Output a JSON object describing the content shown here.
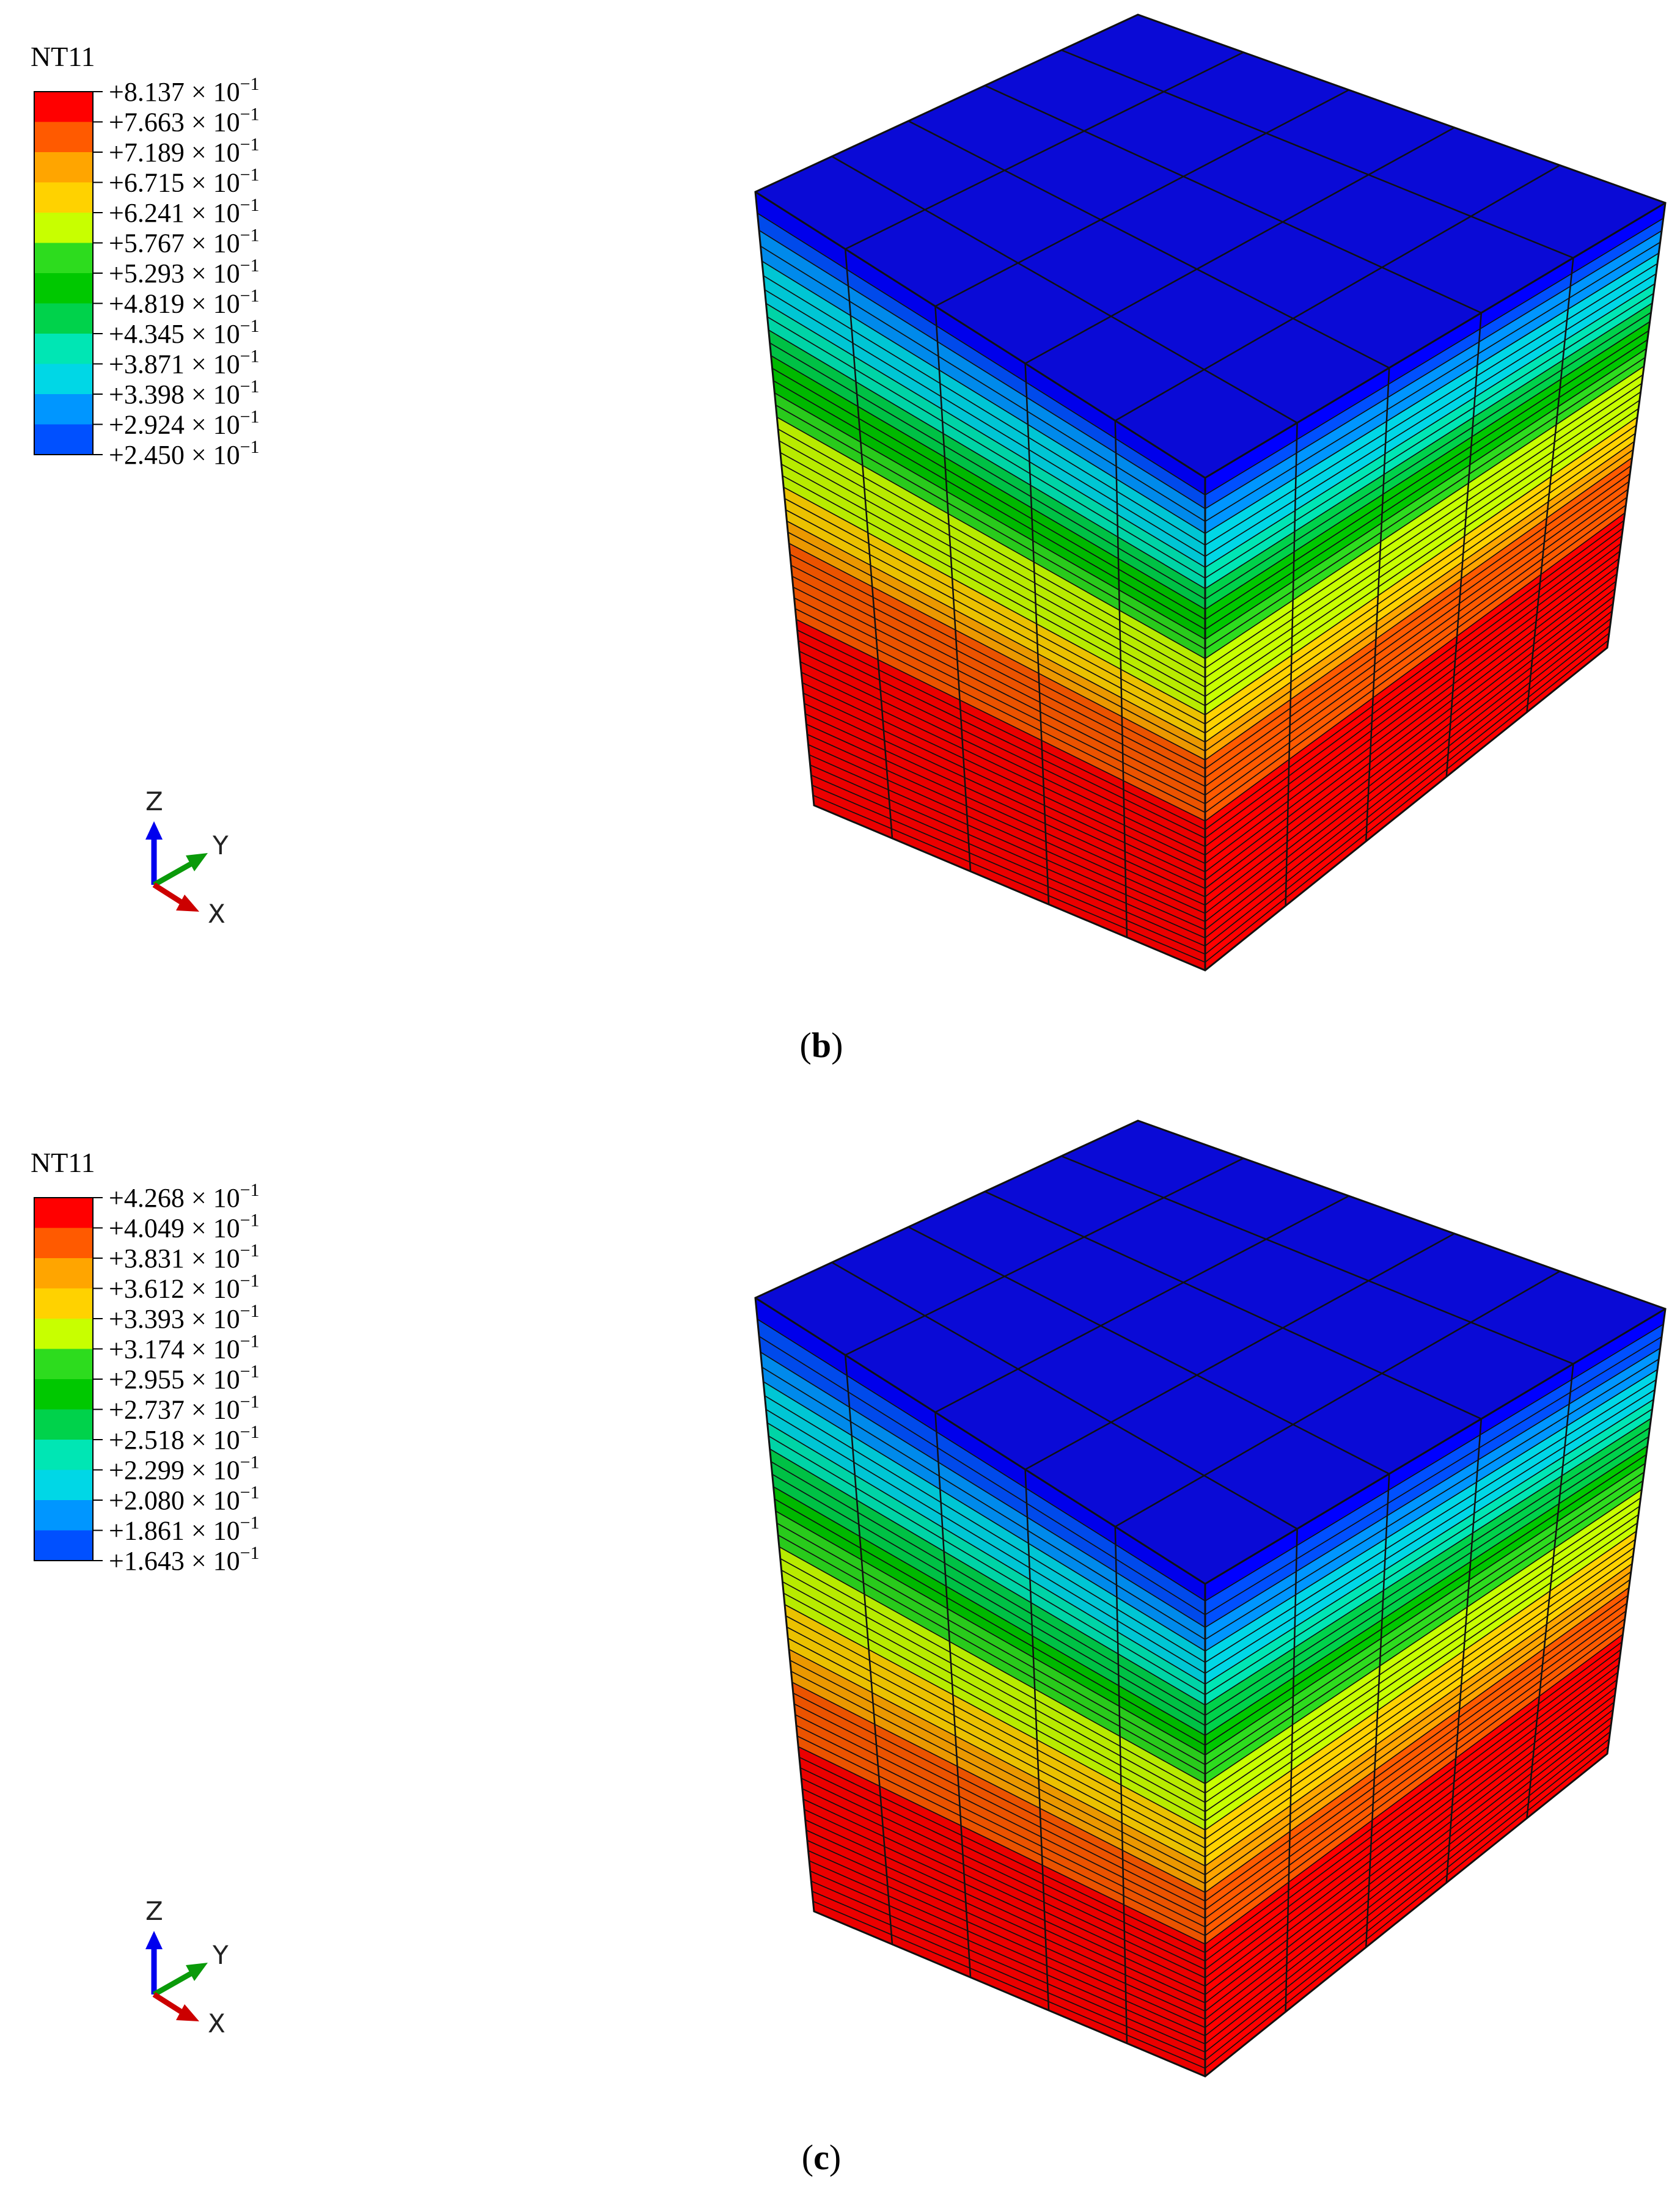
{
  "panels": [
    {
      "id": "b",
      "caption_letter": "b",
      "legend": {
        "title": "NT11",
        "labels": [
          "+8.137 × 10",
          "+7.663 × 10",
          "+7.189 × 10",
          "+6.715 × 10",
          "+6.241 × 10",
          "+5.767 × 10",
          "+5.293 × 10",
          "+4.819 × 10",
          "+4.345 × 10",
          "+3.871 × 10",
          "+3.398 × 10",
          "+2.924 × 10",
          "+2.450 × 10"
        ],
        "exponent": "−1"
      },
      "triad": {
        "z": "Z",
        "y": "Y",
        "x": "X"
      }
    },
    {
      "id": "c",
      "caption_letter": "c",
      "legend": {
        "title": "NT11",
        "labels": [
          "+4.268 × 10",
          "+4.049 × 10",
          "+3.831 × 10",
          "+3.612 × 10",
          "+3.393 × 10",
          "+3.174 × 10",
          "+2.955 × 10",
          "+2.737 × 10",
          "+2.518 × 10",
          "+2.299 × 10",
          "+2.080 × 10",
          "+1.861 × 10",
          "+1.643 × 10"
        ],
        "exponent": "−1"
      },
      "triad": {
        "z": "Z",
        "y": "Y",
        "x": "X"
      }
    }
  ],
  "colors": {
    "band_colors": [
      "#ff0000",
      "#ff5a00",
      "#ffa500",
      "#ffd200",
      "#c8ff00",
      "#2ddc1e",
      "#00c800",
      "#00d24b",
      "#00e6b4",
      "#00d7e6",
      "#0096ff",
      "#0050ff",
      "#0000ff"
    ],
    "top_face": "#0a0ad6",
    "mesh_line": "#111111"
  },
  "contour_profiles": [
    {
      "top_blue_fraction": 0.07,
      "mid_green_fraction": 0.35,
      "red_fraction": 0.42
    },
    {
      "top_blue_fraction": 0.09,
      "mid_green_fraction": 0.36,
      "red_fraction": 0.38
    }
  ]
}
